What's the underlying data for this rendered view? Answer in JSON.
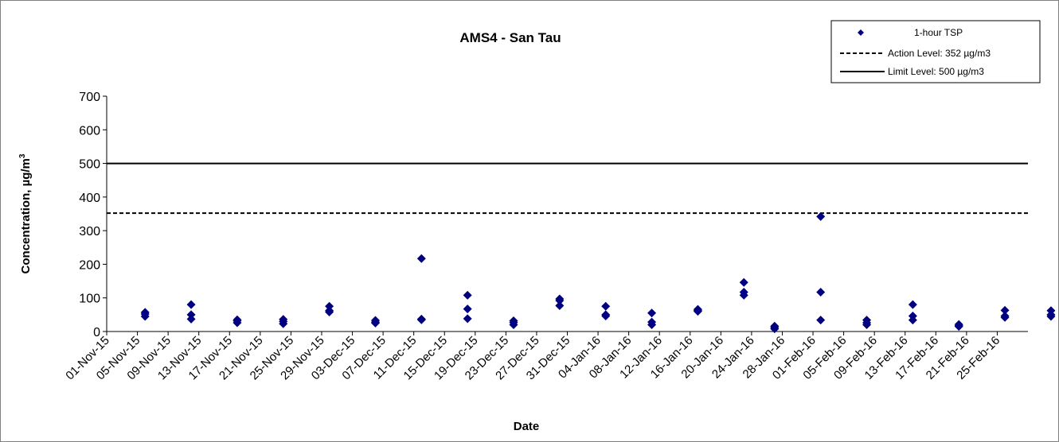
{
  "chart_data": {
    "type": "scatter",
    "title": "AMS4 - San Tau",
    "xlabel": "Date",
    "ylabel": "Concentration, µg/m",
    "ylabel_superscript": "3",
    "ylim": [
      0,
      700
    ],
    "yticks": [
      0,
      100,
      200,
      300,
      400,
      500,
      600,
      700
    ],
    "x_tick_labels": [
      "01-Nov-15",
      "05-Nov-15",
      "09-Nov-15",
      "13-Nov-15",
      "17-Nov-15",
      "21-Nov-15",
      "25-Nov-15",
      "29-Nov-15",
      "03-Dec-15",
      "07-Dec-15",
      "11-Dec-15",
      "15-Dec-15",
      "19-Dec-15",
      "23-Dec-15",
      "27-Dec-15",
      "31-Dec-15",
      "04-Jan-16",
      "08-Jan-16",
      "12-Jan-16",
      "16-Jan-16",
      "20-Jan-16",
      "24-Jan-16",
      "28-Jan-16",
      "01-Feb-16",
      "05-Feb-16",
      "09-Feb-16",
      "13-Feb-16",
      "17-Feb-16",
      "21-Feb-16",
      "25-Feb-16"
    ],
    "xlim": [
      "2015-11-01",
      "2016-02-29"
    ],
    "legend_position": "top-right",
    "grid": false,
    "series": [
      {
        "name": "1-hour TSP",
        "marker": "diamond",
        "color": "#000080",
        "points": [
          {
            "x": "2015-11-06",
            "y": 57
          },
          {
            "x": "2015-11-06",
            "y": 52
          },
          {
            "x": "2015-11-06",
            "y": 45
          },
          {
            "x": "2015-11-12",
            "y": 80
          },
          {
            "x": "2015-11-12",
            "y": 50
          },
          {
            "x": "2015-11-12",
            "y": 37
          },
          {
            "x": "2015-11-18",
            "y": 35
          },
          {
            "x": "2015-11-18",
            "y": 32
          },
          {
            "x": "2015-11-18",
            "y": 26
          },
          {
            "x": "2015-11-24",
            "y": 36
          },
          {
            "x": "2015-11-24",
            "y": 30
          },
          {
            "x": "2015-11-24",
            "y": 23
          },
          {
            "x": "2015-11-30",
            "y": 75
          },
          {
            "x": "2015-11-30",
            "y": 62
          },
          {
            "x": "2015-11-30",
            "y": 58
          },
          {
            "x": "2015-12-06",
            "y": 33
          },
          {
            "x": "2015-12-06",
            "y": 28
          },
          {
            "x": "2015-12-06",
            "y": 25
          },
          {
            "x": "2015-12-12",
            "y": 217
          },
          {
            "x": "2015-12-12",
            "y": 37
          },
          {
            "x": "2015-12-12",
            "y": 35
          },
          {
            "x": "2015-12-18",
            "y": 108
          },
          {
            "x": "2015-12-18",
            "y": 67
          },
          {
            "x": "2015-12-18",
            "y": 38
          },
          {
            "x": "2015-12-24",
            "y": 32
          },
          {
            "x": "2015-12-24",
            "y": 27
          },
          {
            "x": "2015-12-24",
            "y": 20
          },
          {
            "x": "2015-12-30",
            "y": 97
          },
          {
            "x": "2015-12-30",
            "y": 92
          },
          {
            "x": "2015-12-30",
            "y": 77
          },
          {
            "x": "2016-01-05",
            "y": 75
          },
          {
            "x": "2016-01-05",
            "y": 50
          },
          {
            "x": "2016-01-05",
            "y": 46
          },
          {
            "x": "2016-01-11",
            "y": 55
          },
          {
            "x": "2016-01-11",
            "y": 28
          },
          {
            "x": "2016-01-11",
            "y": 20
          },
          {
            "x": "2016-01-17",
            "y": 66
          },
          {
            "x": "2016-01-17",
            "y": 63
          },
          {
            "x": "2016-01-17",
            "y": 60
          },
          {
            "x": "2016-01-23",
            "y": 146
          },
          {
            "x": "2016-01-23",
            "y": 117
          },
          {
            "x": "2016-01-23",
            "y": 108
          },
          {
            "x": "2016-01-27",
            "y": 16
          },
          {
            "x": "2016-01-27",
            "y": 12
          },
          {
            "x": "2016-01-27",
            "y": 8
          },
          {
            "x": "2016-02-02",
            "y": 342
          },
          {
            "x": "2016-02-02",
            "y": 117
          },
          {
            "x": "2016-02-02",
            "y": 34
          },
          {
            "x": "2016-02-08",
            "y": 34
          },
          {
            "x": "2016-02-08",
            "y": 26
          },
          {
            "x": "2016-02-08",
            "y": 20
          },
          {
            "x": "2016-02-14",
            "y": 80
          },
          {
            "x": "2016-02-14",
            "y": 46
          },
          {
            "x": "2016-02-14",
            "y": 34
          },
          {
            "x": "2016-02-20",
            "y": 21
          },
          {
            "x": "2016-02-20",
            "y": 17
          },
          {
            "x": "2016-02-20",
            "y": 15
          },
          {
            "x": "2016-02-26",
            "y": 63
          },
          {
            "x": "2016-02-26",
            "y": 46
          },
          {
            "x": "2016-02-26",
            "y": 42
          },
          {
            "x": "2016-03-03",
            "y": 62
          },
          {
            "x": "2016-03-03",
            "y": 50
          },
          {
            "x": "2016-03-03",
            "y": 45
          }
        ]
      }
    ],
    "reference_lines": [
      {
        "name": "Action Level: 352 µg/m3",
        "y": 352,
        "style": "dashed",
        "color": "#000000"
      },
      {
        "name": "Limit Level: 500 µg/m3",
        "y": 500,
        "style": "solid",
        "color": "#000000"
      }
    ]
  }
}
